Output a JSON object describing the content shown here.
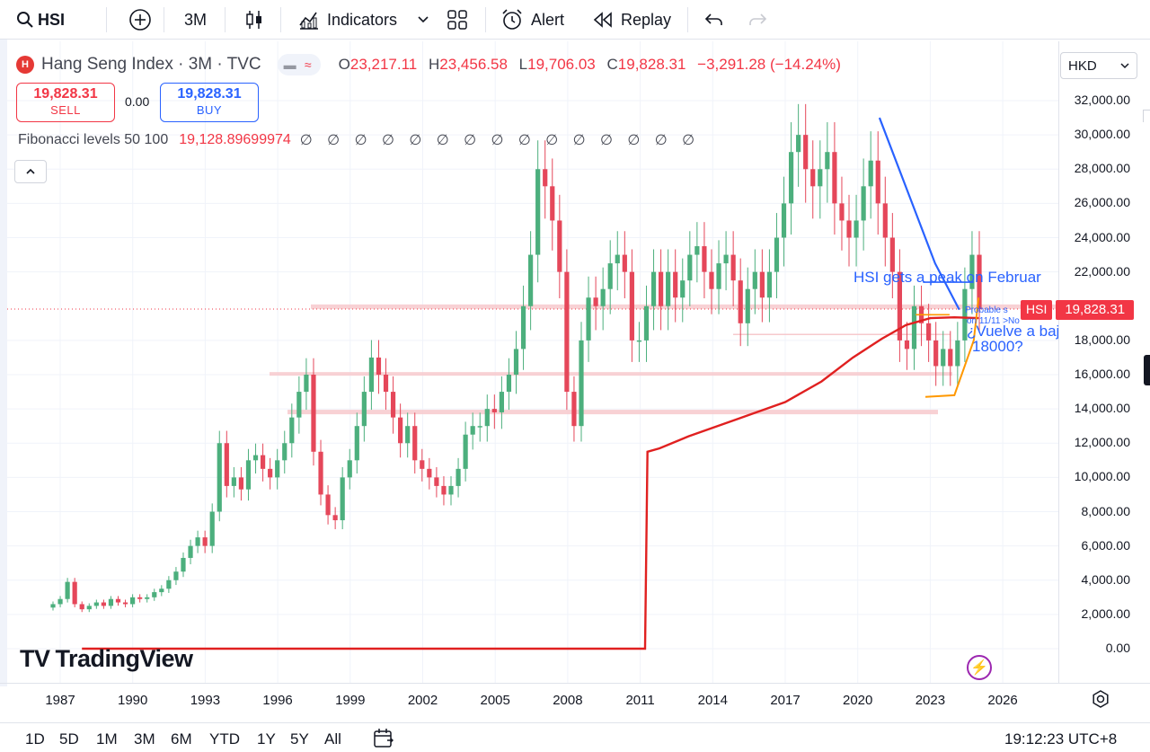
{
  "toolbar": {
    "symbol": "HSI",
    "interval": "3M",
    "indicators_label": "Indicators",
    "alert_label": "Alert",
    "replay_label": "Replay"
  },
  "legend": {
    "title": "Hang Seng Index · 3M · TVC",
    "o_label": "O",
    "o_value": "23,217.11",
    "h_label": "H",
    "h_value": "23,456.58",
    "l_label": "L",
    "l_value": "19,706.03",
    "c_label": "C",
    "c_value": "19,828.31",
    "change": "−3,291.28 (−14.24%)"
  },
  "trade": {
    "sell_price": "19,828.31",
    "sell_label": "SELL",
    "spread": "0.00",
    "buy_price": "19,828.31",
    "buy_label": "BUY"
  },
  "fib": {
    "label": "Fibonacci levels 50 100",
    "value": "19,128.89699974",
    "empties": "∅ ∅ ∅ ∅ ∅ ∅ ∅ ∅ ∅ ∅ ∅ ∅ ∅ ∅ ∅"
  },
  "currency": "HKD",
  "price_scale": [
    "32,000.00",
    "30,000.00",
    "28,000.00",
    "26,000.00",
    "24,000.00",
    "22,000.00",
    "18,000.00",
    "16,000.00",
    "14,000.00",
    "12,000.00",
    "10,000.00",
    "8,000.00",
    "6,000.00",
    "4,000.00",
    "2,000.00",
    "0.00"
  ],
  "last_price": {
    "tag": "HSI",
    "value": "19,828.31"
  },
  "time_axis": [
    "1987",
    "1990",
    "1993",
    "1996",
    "1999",
    "2002",
    "2005",
    "2008",
    "2011",
    "2014",
    "2017",
    "2020",
    "2023",
    "2026"
  ],
  "annotations": {
    "peak_text": "HSI gets a peak on Februar",
    "probable_text": "Probable s",
    "on_text": "on 11/11 >No",
    "vuelve_text": "¿Vuelve a baja",
    "target_text": "18000?"
  },
  "ranges": [
    "1D",
    "5D",
    "1M",
    "3M",
    "6M",
    "YTD",
    "1Y",
    "5Y",
    "All"
  ],
  "clock": "19:12:23 UTC+8",
  "watermark": "TradingView",
  "colors": {
    "up": "#4caf7d",
    "down": "#e5475a",
    "accent": "#2962ff",
    "ma": "#e02020"
  }
}
